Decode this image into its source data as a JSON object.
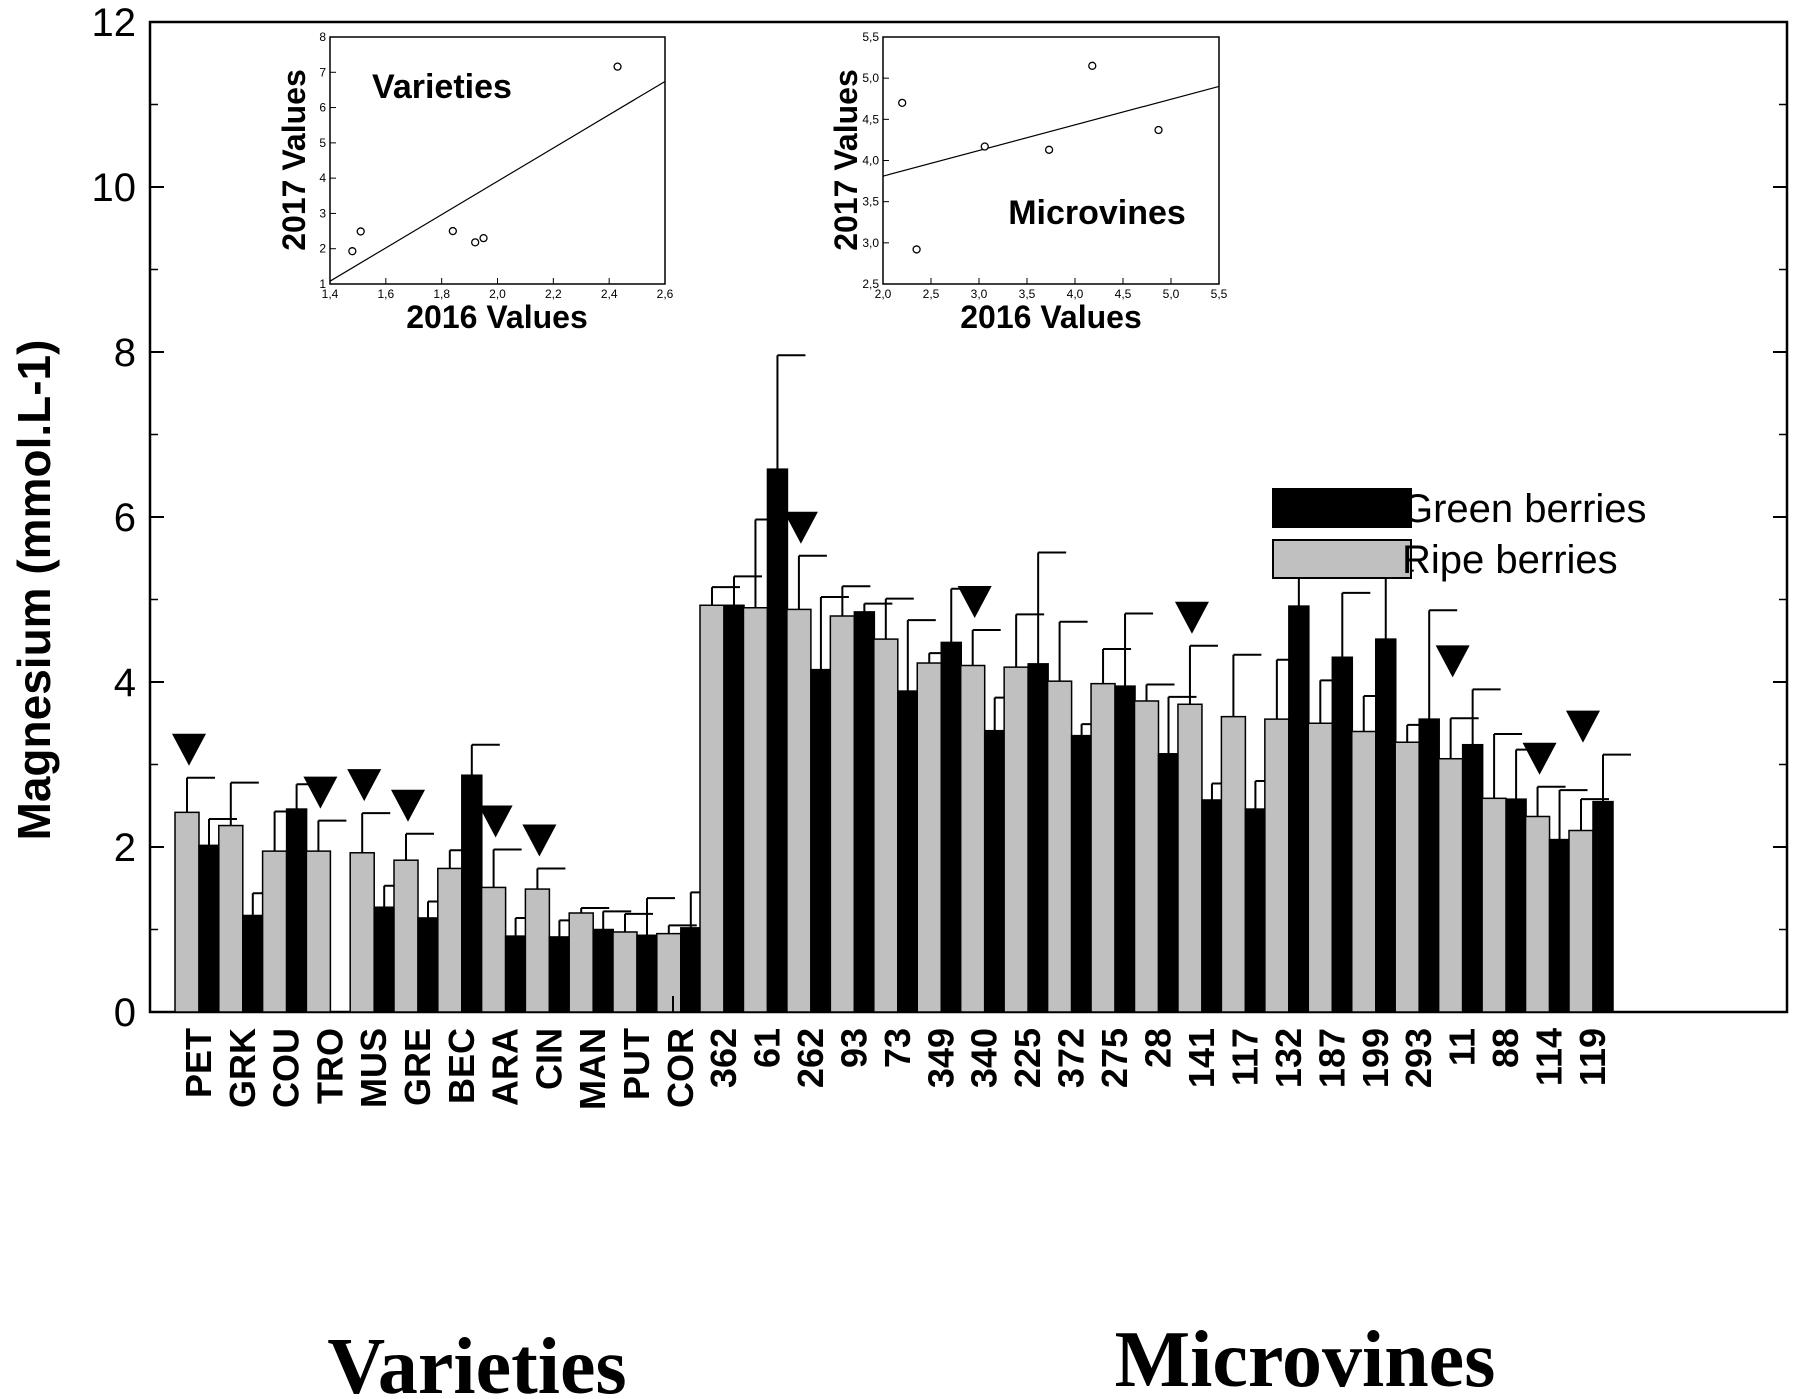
{
  "chart_data": {
    "type": "bar",
    "ylabel": "Magnesium (mmol.L-1)",
    "ylim": [
      0,
      12
    ],
    "yticks": [
      "0",
      "2",
      "4",
      "6",
      "8",
      "10",
      "12"
    ],
    "legend": {
      "position": "right",
      "entries": [
        {
          "name": "Green berries",
          "color": "#000000"
        },
        {
          "name": "Ripe berries",
          "color": "#c0c0c0"
        }
      ]
    },
    "groups": [
      {
        "name": "Varieties",
        "categories": [
          "PET",
          "GRK",
          "COU",
          "TRO",
          "MUS",
          "GRE",
          "BEC",
          "ARA",
          "CIN",
          "MAN",
          "PUT",
          "COR"
        ],
        "series": [
          {
            "name": "Ripe berries",
            "values": [
              2.42,
              2.26,
              1.95,
              1.95,
              1.93,
              1.84,
              1.74,
              1.51,
              1.49,
              1.2,
              0.97,
              0.95
            ],
            "errors": [
              0.42,
              0.52,
              0.48,
              0.37,
              0.48,
              0.32,
              0.22,
              0.46,
              0.25,
              0.06,
              0.22,
              0.1
            ]
          },
          {
            "name": "Green berries",
            "values": [
              2.02,
              1.17,
              2.46,
              0,
              1.27,
              1.14,
              2.87,
              0.92,
              0.91,
              1.0,
              0.93,
              1.02
            ],
            "errors": [
              0.32,
              0.27,
              0.3,
              0,
              0.26,
              0.2,
              0.37,
              0.22,
              0.2,
              0.22,
              0.45,
              0.43
            ]
          }
        ],
        "markers": [
          "PET",
          "TRO",
          "MUS",
          "GRE",
          "ARA",
          "CIN"
        ]
      },
      {
        "name": "Microvines",
        "categories": [
          "362",
          "61",
          "262",
          "93",
          "73",
          "349",
          "340",
          "225",
          "372",
          "275",
          "28",
          "141",
          "117",
          "132",
          "187",
          "199",
          "293",
          "11",
          "88",
          "114",
          "119"
        ],
        "series": [
          {
            "name": "Ripe berries",
            "values": [
              4.93,
              4.9,
              4.88,
              4.8,
              4.52,
              4.23,
              4.2,
              4.18,
              4.01,
              3.98,
              3.77,
              3.73,
              3.58,
              3.55,
              3.5,
              3.4,
              3.27,
              3.07,
              2.59,
              2.37,
              2.2
            ],
            "errors": [
              0.22,
              1.07,
              0.65,
              0.36,
              0.49,
              0.12,
              0.43,
              0.64,
              0.72,
              0.42,
              0.2,
              0.71,
              0.75,
              0.72,
              0.52,
              0.43,
              0.21,
              0.49,
              0.78,
              0.36,
              0.38
            ]
          },
          {
            "name": "Green berries",
            "values": [
              4.93,
              6.58,
              4.15,
              4.85,
              3.89,
              4.48,
              3.41,
              4.22,
              3.35,
              3.95,
              3.13,
              2.57,
              2.46,
              4.92,
              4.3,
              4.52,
              3.55,
              3.24,
              2.58,
              2.09,
              2.55
            ],
            "errors": [
              0.35,
              1.38,
              0.88,
              0.1,
              0.86,
              0.65,
              0.4,
              1.35,
              0.14,
              0.88,
              0.69,
              0.2,
              0.34,
              0.61,
              0.78,
              0.83,
              1.32,
              0.67,
              0.6,
              0.6,
              0.57
            ]
          }
        ],
        "markers": [
          "262",
          "340",
          "141",
          "11",
          "114",
          "119"
        ]
      }
    ],
    "insets": [
      {
        "type": "scatter",
        "title": "Varieties",
        "xlabel": "2016 Values",
        "ylabel": "2017 Values",
        "xlim": [
          1.4,
          2.6
        ],
        "ylim": [
          1,
          8
        ],
        "xticks": [
          "1,4",
          "1,6",
          "1,8",
          "2,0",
          "2,2",
          "2,4",
          "2,6"
        ],
        "yticks": [
          "1",
          "2",
          "3",
          "4",
          "5",
          "6",
          "7",
          "8"
        ],
        "points": [
          [
            1.48,
            1.93
          ],
          [
            1.51,
            2.49
          ],
          [
            1.84,
            2.5
          ],
          [
            1.92,
            2.18
          ],
          [
            1.95,
            2.3
          ],
          [
            2.43,
            7.16
          ]
        ],
        "fit_line": [
          [
            1.4,
            1.08
          ],
          [
            2.6,
            6.74
          ]
        ]
      },
      {
        "type": "scatter",
        "title": "Microvines",
        "xlabel": "2016 Values",
        "ylabel": "2017 Values",
        "xlim": [
          2.0,
          5.5
        ],
        "ylim": [
          2.5,
          5.5
        ],
        "xticks": [
          "2,0",
          "2,5",
          "3,0",
          "3,5",
          "4,0",
          "4,5",
          "5,0",
          "5,5"
        ],
        "yticks": [
          "2,5",
          "3,0",
          "3,5",
          "4,0",
          "4,5",
          "5,0",
          "5,5"
        ],
        "points": [
          [
            2.2,
            4.7
          ],
          [
            2.35,
            2.92
          ],
          [
            3.06,
            4.17
          ],
          [
            3.73,
            4.13
          ],
          [
            4.18,
            5.15
          ],
          [
            4.87,
            4.37
          ]
        ],
        "fit_line": [
          [
            2.0,
            3.81
          ],
          [
            5.5,
            4.9
          ]
        ]
      }
    ]
  }
}
